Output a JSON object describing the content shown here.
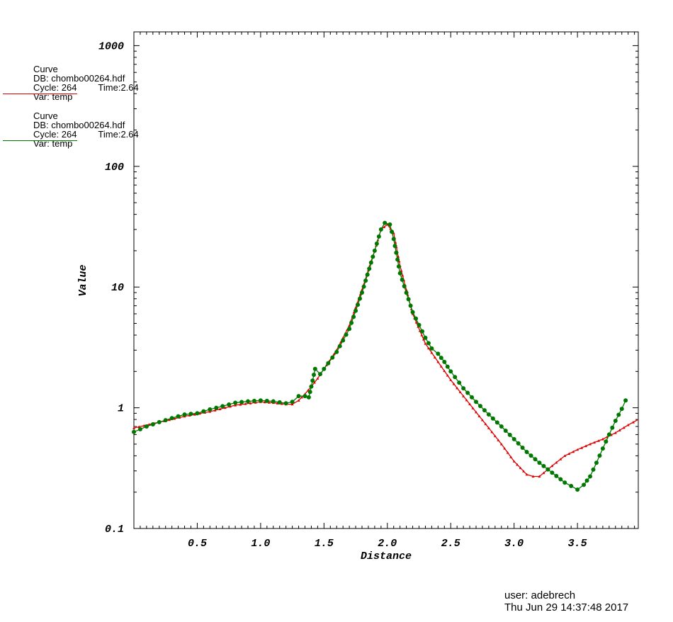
{
  "chart_data": {
    "type": "line",
    "xlabel": "Distance",
    "ylabel": "Value",
    "xlim": [
      0.0,
      3.98
    ],
    "ylim": [
      0.1,
      1300
    ],
    "yscale": "log",
    "x_ticks": [
      "0.5",
      "1.0",
      "1.5",
      "2.0",
      "2.5",
      "3.0",
      "3.5"
    ],
    "x_tick_values": [
      0.5,
      1.0,
      1.5,
      2.0,
      2.5,
      3.0,
      3.5
    ],
    "y_ticks": [
      "0.1",
      "1",
      "10",
      "100",
      "1000"
    ],
    "y_tick_values": [
      0.1,
      1,
      10,
      100,
      1000
    ],
    "grid": false,
    "legend_position": "left",
    "series": [
      {
        "name": "Curve",
        "db": "DB: chombo00264.hdf",
        "cycle": "Cycle: 264",
        "time": "Time:2.64",
        "var": "Var: temp",
        "color": "#e00000",
        "marker": "triangle",
        "x": [
          0.0,
          0.2,
          0.4,
          0.6,
          0.8,
          1.0,
          1.1,
          1.2,
          1.25,
          1.3,
          1.35,
          1.4,
          1.45,
          1.5,
          1.6,
          1.7,
          1.8,
          1.9,
          1.95,
          2.0,
          2.05,
          2.1,
          2.2,
          2.3,
          2.4,
          2.5,
          2.6,
          2.7,
          2.8,
          2.9,
          3.0,
          3.1,
          3.15,
          3.2,
          3.3,
          3.4,
          3.5,
          3.6,
          3.7,
          3.8,
          3.9,
          3.98
        ],
        "y": [
          0.68,
          0.76,
          0.85,
          0.93,
          1.05,
          1.12,
          1.1,
          1.07,
          1.07,
          1.15,
          1.3,
          1.5,
          1.75,
          2.1,
          3.0,
          4.8,
          9.5,
          20,
          30,
          33,
          28,
          15,
          6.0,
          3.4,
          2.4,
          1.7,
          1.25,
          0.92,
          0.68,
          0.5,
          0.36,
          0.28,
          0.27,
          0.27,
          0.33,
          0.4,
          0.45,
          0.5,
          0.55,
          0.62,
          0.72,
          0.8
        ]
      },
      {
        "name": "Curve",
        "db": "DB: chombo00264.hdf",
        "cycle": "Cycle: 264",
        "time": "Time:2.64",
        "var": "Var: temp",
        "color": "#007800",
        "marker": "circle",
        "x": [
          0.0,
          0.1,
          0.2,
          0.3,
          0.4,
          0.5,
          0.6,
          0.7,
          0.8,
          0.9,
          1.0,
          1.05,
          1.1,
          1.15,
          1.2,
          1.25,
          1.3,
          1.35,
          1.38,
          1.4,
          1.43,
          1.47,
          1.5,
          1.6,
          1.7,
          1.8,
          1.9,
          1.95,
          1.98,
          2.02,
          2.05,
          2.1,
          2.2,
          2.3,
          2.35,
          2.4,
          2.45,
          2.5,
          2.6,
          2.7,
          2.8,
          2.9,
          3.0,
          3.1,
          3.2,
          3.3,
          3.4,
          3.45,
          3.5,
          3.55,
          3.6,
          3.65,
          3.7,
          3.75,
          3.8,
          3.85,
          3.88
        ],
        "y": [
          0.63,
          0.7,
          0.76,
          0.82,
          0.88,
          0.9,
          0.97,
          1.03,
          1.1,
          1.13,
          1.15,
          1.14,
          1.13,
          1.11,
          1.09,
          1.12,
          1.25,
          1.25,
          1.22,
          1.5,
          2.1,
          1.9,
          2.1,
          2.9,
          4.5,
          9.0,
          20,
          30,
          34,
          33,
          25,
          13,
          6.2,
          3.8,
          3.1,
          2.8,
          2.4,
          2.0,
          1.45,
          1.12,
          0.88,
          0.7,
          0.55,
          0.43,
          0.35,
          0.29,
          0.24,
          0.225,
          0.21,
          0.23,
          0.27,
          0.35,
          0.46,
          0.6,
          0.78,
          0.98,
          1.15
        ]
      }
    ]
  },
  "footer": {
    "user": "user: adebrech",
    "timestamp": "Thu Jun 29 14:37:48 2017"
  }
}
